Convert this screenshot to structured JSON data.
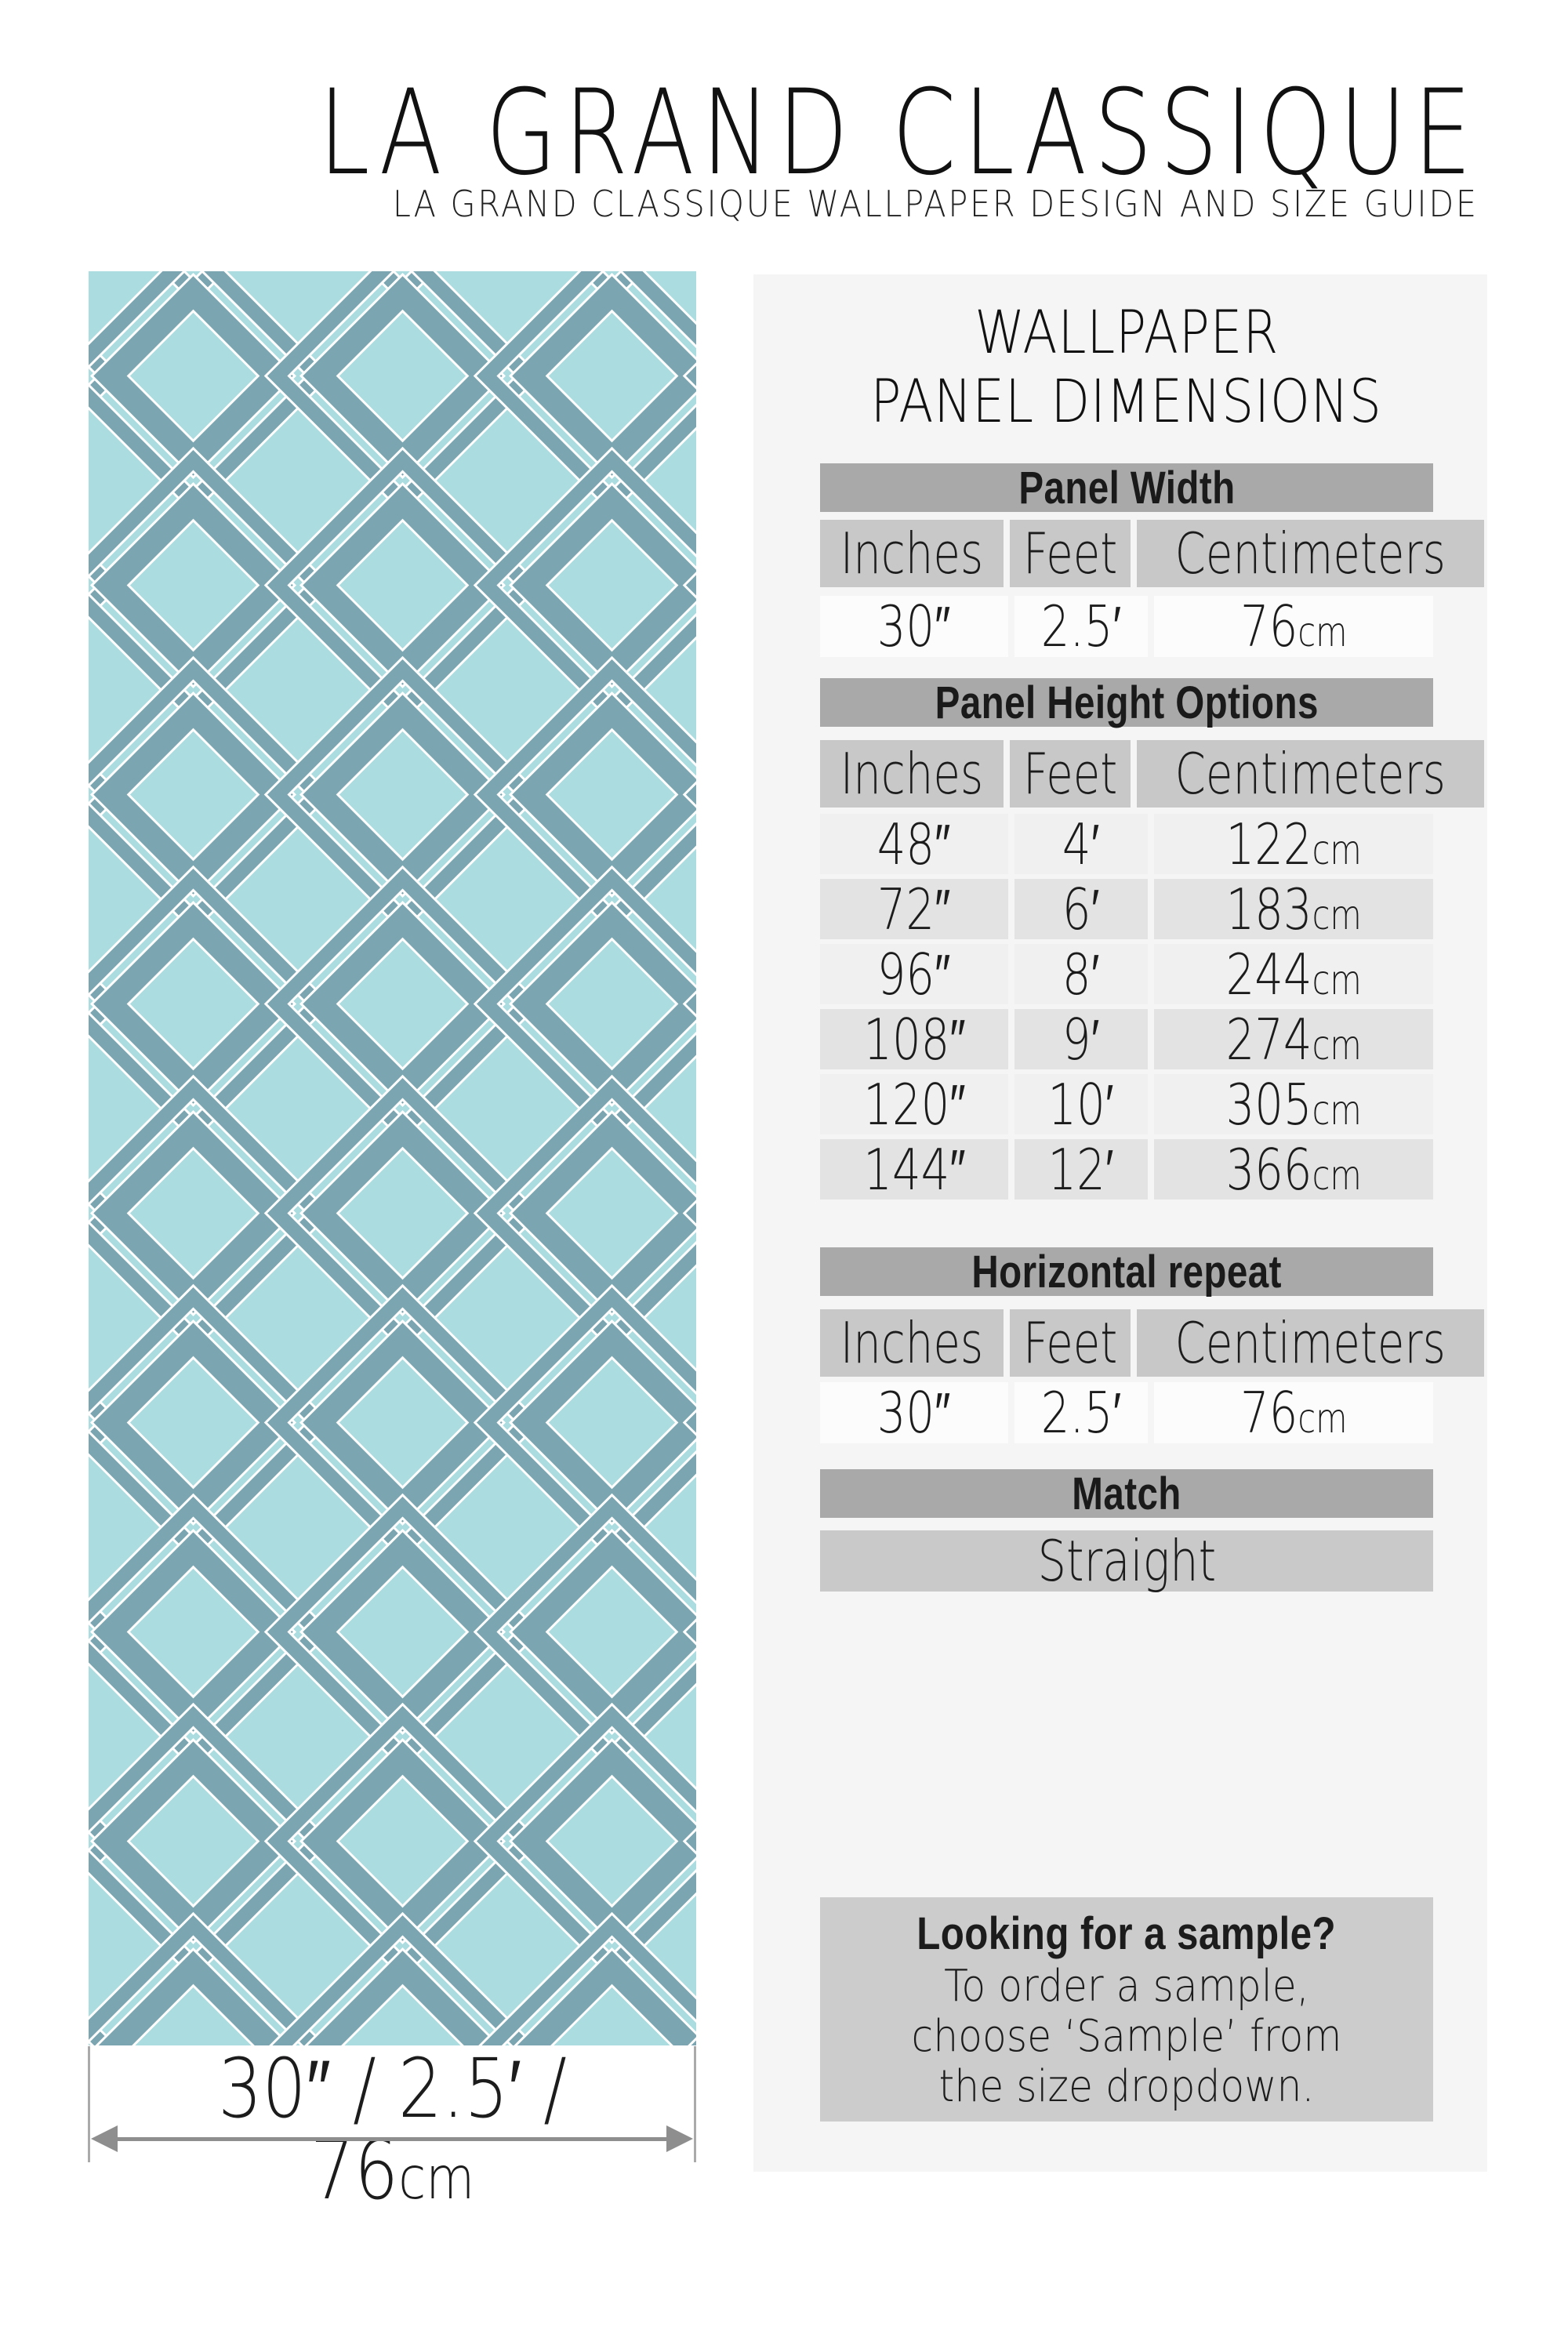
{
  "header": {
    "title": "LA GRAND CLASSIQUE",
    "subtitle": "LA GRAND CLASSIQUE WALLPAPER DESIGN AND SIZE GUIDE"
  },
  "panel": {
    "heading_line1": "WALLPAPER",
    "heading_line2": "PANEL DIMENSIONS",
    "tables": {
      "panel_width": {
        "title": "Panel Width",
        "columns": [
          "Inches",
          "Feet",
          "Centimeters"
        ],
        "rows": [
          [
            "30″",
            "2.5′",
            "76cm"
          ]
        ]
      },
      "panel_height": {
        "title": "Panel Height Options",
        "columns": [
          "Inches",
          "Feet",
          "Centimeters"
        ],
        "rows": [
          [
            "48″",
            "4′",
            "122cm"
          ],
          [
            "72″",
            "6′",
            "183cm"
          ],
          [
            "96″",
            "8′",
            "244cm"
          ],
          [
            "108″",
            "9′",
            "274cm"
          ],
          [
            "120″",
            "10′",
            "305cm"
          ],
          [
            "144″",
            "12′",
            "366cm"
          ]
        ]
      },
      "horizontal_repeat": {
        "title": "Horizontal repeat",
        "columns": [
          "Inches",
          "Feet",
          "Centimeters"
        ],
        "rows": [
          [
            "30″",
            "2.5′",
            "76cm"
          ]
        ]
      },
      "match": {
        "title": "Match",
        "value": "Straight"
      }
    },
    "sample_box": {
      "title": "Looking for a sample?",
      "body": "To order a sample, choose ‘Sample’ from the size dropdown."
    }
  },
  "swatch": {
    "width_label": "30″ / 2.5′ / 76cm",
    "colors": {
      "background": "#abdcdf",
      "bar": "#7ba6b1",
      "outline": "#ffffff",
      "arrow": "#8e8e8e",
      "panel_background": "#f5f5f6",
      "table_header_bar": "#a9a9a9",
      "column_header_cell": "#c8c8c8"
    }
  }
}
